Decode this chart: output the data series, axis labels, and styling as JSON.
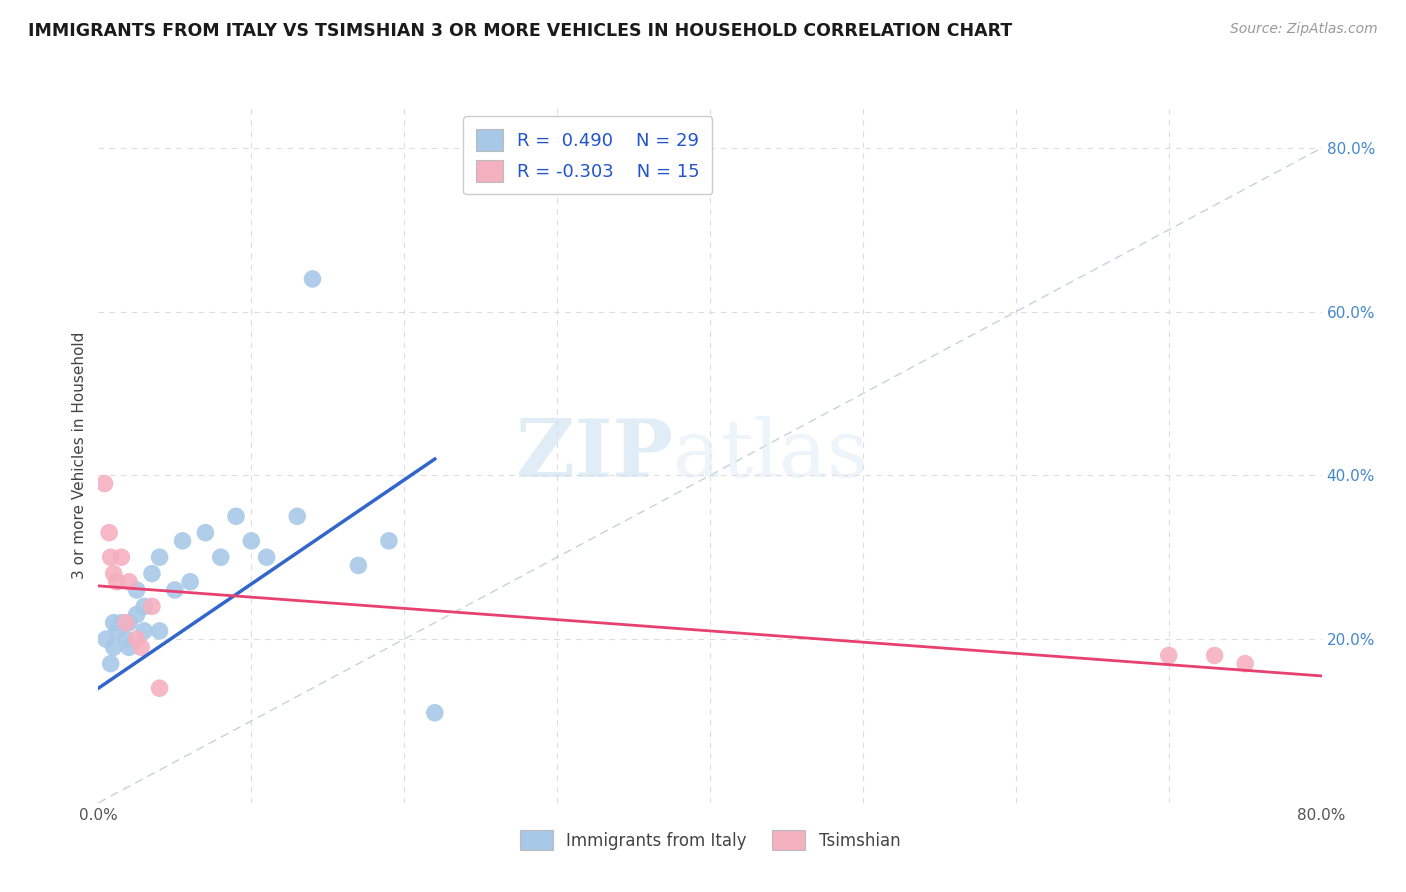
{
  "title": "IMMIGRANTS FROM ITALY VS TSIMSHIAN 3 OR MORE VEHICLES IN HOUSEHOLD CORRELATION CHART",
  "source": "Source: ZipAtlas.com",
  "ylabel": "3 or more Vehicles in Household",
  "xlim": [
    0,
    0.8
  ],
  "ylim": [
    0,
    0.85
  ],
  "xticks": [
    0.0,
    0.1,
    0.2,
    0.3,
    0.4,
    0.5,
    0.6,
    0.7,
    0.8
  ],
  "xticklabels": [
    "0.0%",
    "",
    "",
    "",
    "",
    "",
    "",
    "",
    "80.0%"
  ],
  "yticks_right": [
    0.0,
    0.2,
    0.4,
    0.6,
    0.8
  ],
  "yticklabels_right": [
    "",
    "20.0%",
    "40.0%",
    "60.0%",
    "80.0%"
  ],
  "blue_R": 0.49,
  "blue_N": 29,
  "pink_R": -0.303,
  "pink_N": 15,
  "blue_color": "#a8c8e8",
  "pink_color": "#f5b0c0",
  "blue_line_color": "#3366cc",
  "pink_line_color": "#e84070",
  "diag_line_color": "#c0c8d8",
  "legend_label_blue": "Immigrants from Italy",
  "legend_label_pink": "Tsimshian",
  "watermark_zip": "ZIP",
  "watermark_atlas": "atlas",
  "blue_scatter_x": [
    0.005,
    0.008,
    0.01,
    0.01,
    0.012,
    0.015,
    0.018,
    0.02,
    0.02,
    0.025,
    0.025,
    0.03,
    0.03,
    0.035,
    0.04,
    0.04,
    0.05,
    0.055,
    0.06,
    0.07,
    0.08,
    0.09,
    0.1,
    0.11,
    0.13,
    0.14,
    0.17,
    0.19,
    0.22
  ],
  "blue_scatter_y": [
    0.2,
    0.17,
    0.22,
    0.19,
    0.21,
    0.22,
    0.2,
    0.22,
    0.19,
    0.23,
    0.26,
    0.24,
    0.21,
    0.28,
    0.3,
    0.21,
    0.26,
    0.32,
    0.27,
    0.33,
    0.3,
    0.35,
    0.32,
    0.3,
    0.35,
    0.64,
    0.29,
    0.32,
    0.11
  ],
  "pink_scatter_x": [
    0.004,
    0.007,
    0.008,
    0.01,
    0.012,
    0.015,
    0.018,
    0.02,
    0.025,
    0.028,
    0.035,
    0.04,
    0.7,
    0.73,
    0.75
  ],
  "pink_scatter_y": [
    0.39,
    0.33,
    0.3,
    0.28,
    0.27,
    0.3,
    0.22,
    0.27,
    0.2,
    0.19,
    0.24,
    0.14,
    0.18,
    0.18,
    0.17
  ],
  "blue_line_x": [
    0.0,
    0.22
  ],
  "blue_line_y": [
    0.14,
    0.42
  ],
  "pink_line_x": [
    0.0,
    0.8
  ],
  "pink_line_y": [
    0.265,
    0.155
  ],
  "grid_color": "#dddddd"
}
